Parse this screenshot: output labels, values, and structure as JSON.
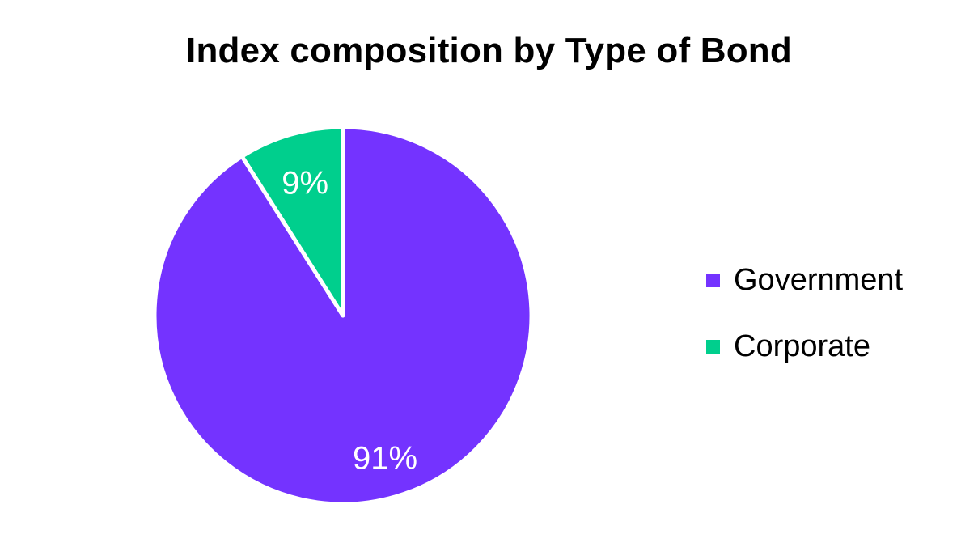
{
  "chart_data": {
    "type": "pie",
    "title": "Index composition by Type of Bond",
    "start_angle_deg": 0,
    "direction": "clockwise",
    "slice_border_color": "#ffffff",
    "slices": [
      {
        "name": "Government",
        "value": 91,
        "label": "91%",
        "color": "#7433FF"
      },
      {
        "name": "Corporate",
        "value": 9,
        "label": "9%",
        "color": "#00CF8D"
      }
    ],
    "legend_placement": "right"
  }
}
